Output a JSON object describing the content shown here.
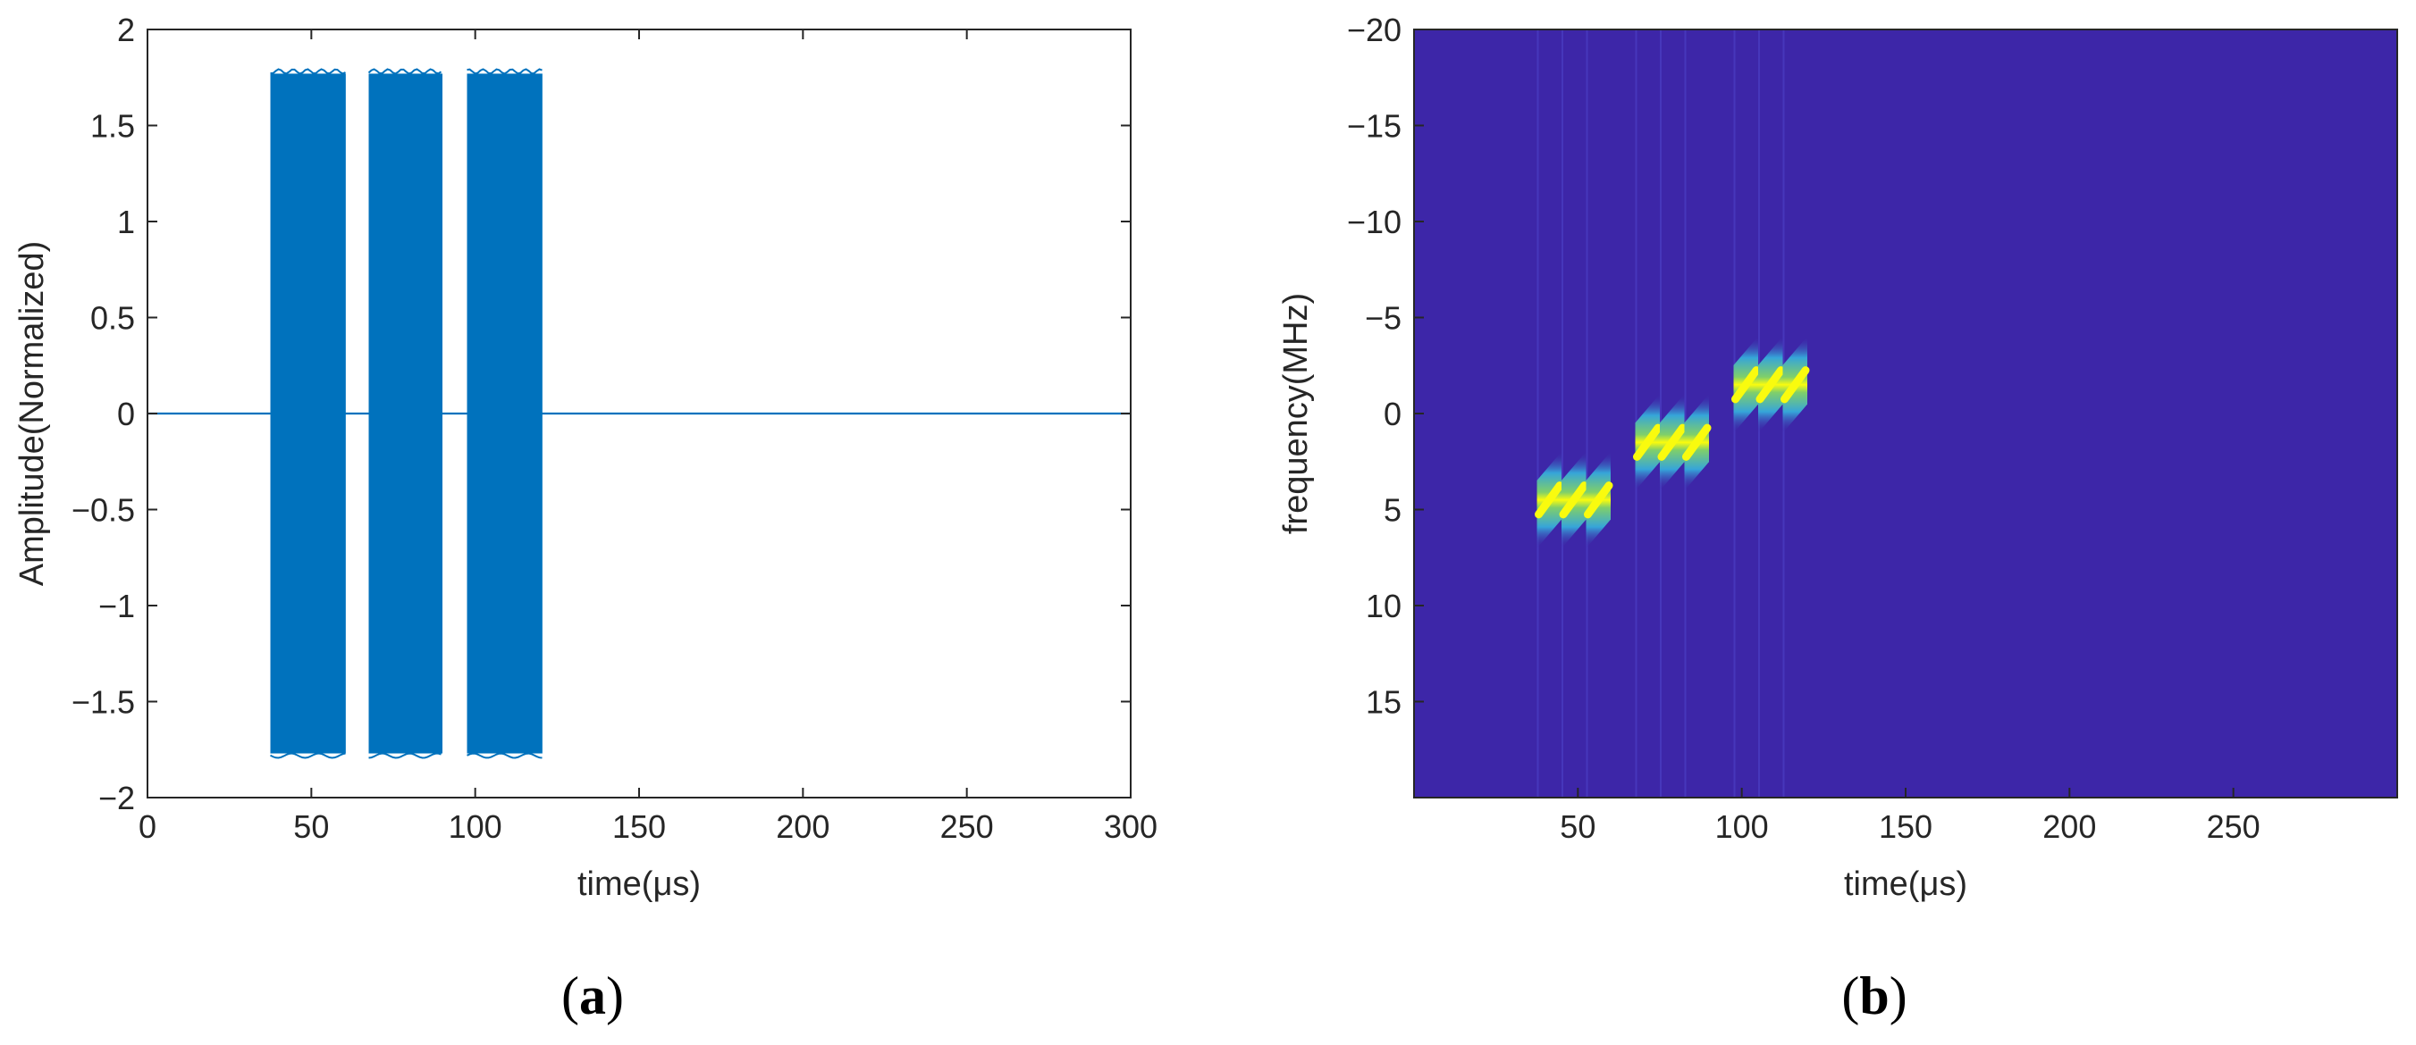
{
  "colors": {
    "signal": "#0072bd",
    "axis": "#262626",
    "spectrogram_bg": "#3d26a8",
    "spectrogram_mid": "#36a5d9",
    "spectrogram_high": "#f9fb0e"
  },
  "chart_data": [
    {
      "type": "area",
      "panel": "(a)",
      "xlabel": "time(μs)",
      "ylabel": "Amplitude(Normalized)",
      "xlim": [
        0,
        300
      ],
      "ylim": [
        -2,
        2
      ],
      "xticks": [
        "0",
        "50",
        "100",
        "150",
        "200",
        "250",
        "300"
      ],
      "yticks": [
        "2",
        "1.5",
        "1",
        "0.5",
        "0",
        "−0.5",
        "−1",
        "−1.5",
        "−2"
      ],
      "grid": false,
      "series": [
        {
          "pulses": [
            {
              "start": 37.5,
              "end": 60.5,
              "amplitude": 1.77
            },
            {
              "start": 67.5,
              "end": 90.0,
              "amplitude": 1.77
            },
            {
              "start": 97.5,
              "end": 120.5,
              "amplitude": 1.77
            }
          ],
          "baseline": 0
        }
      ]
    },
    {
      "type": "heatmap",
      "panel": "(b)",
      "xlabel": "time(μs)",
      "ylabel": "frequency(MHz)",
      "xlim": [
        0,
        300
      ],
      "ylim": [
        -20,
        20
      ],
      "y_reversed": true,
      "xticks": [
        "50",
        "100",
        "150",
        "200",
        "250"
      ],
      "yticks": [
        "−20",
        "−15",
        "−10",
        "−5",
        "0",
        "5",
        "10",
        "15"
      ],
      "grid": false,
      "segments": [
        {
          "start": 37.5,
          "end": 45,
          "freq": 4.5
        },
        {
          "start": 45,
          "end": 52.5,
          "freq": 4.5
        },
        {
          "start": 52.5,
          "end": 60,
          "freq": 4.5
        },
        {
          "start": 67.5,
          "end": 75,
          "freq": 1.5
        },
        {
          "start": 75,
          "end": 82.5,
          "freq": 1.5
        },
        {
          "start": 82.5,
          "end": 90,
          "freq": 1.5
        },
        {
          "start": 97.5,
          "end": 105,
          "freq": -1.5
        },
        {
          "start": 105,
          "end": 112.5,
          "freq": -1.5
        },
        {
          "start": 112.5,
          "end": 120,
          "freq": -1.5
        }
      ],
      "chirp_span_mhz": 1.5
    }
  ],
  "captions": {
    "a_open": "(",
    "a_letter": "a",
    "a_close": ")",
    "b_open": "(",
    "b_letter": "b",
    "b_close": ")"
  }
}
